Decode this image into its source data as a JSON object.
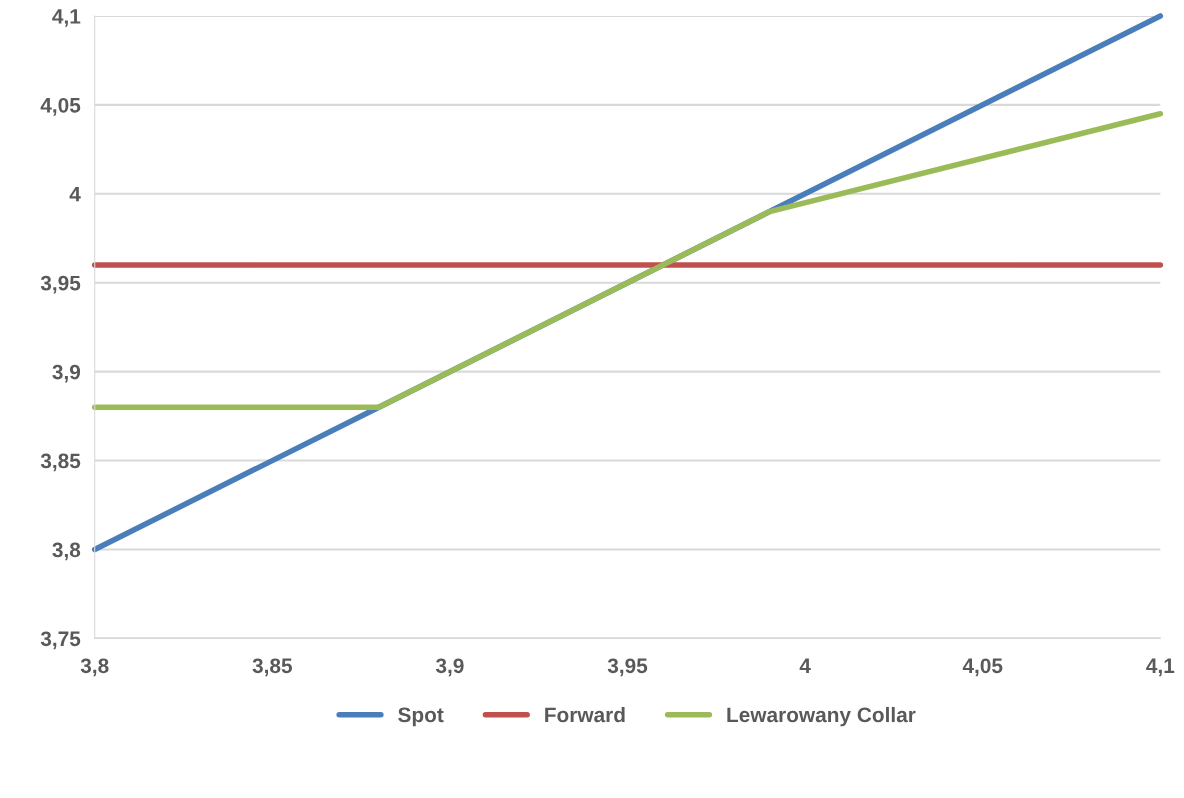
{
  "chart_data": {
    "type": "line",
    "x": [
      3.8,
      3.88,
      3.99,
      4.1
    ],
    "series": [
      {
        "name": "Spot",
        "color": "#4a7ebb",
        "values": [
          3.8,
          3.88,
          3.99,
          4.1
        ]
      },
      {
        "name": "Forward",
        "color": "#c0504d",
        "values": [
          3.96,
          3.96,
          3.96,
          3.96
        ]
      },
      {
        "name": "Lewarowany Collar",
        "color": "#9bbb59",
        "values": [
          3.88,
          3.88,
          3.99,
          4.045
        ]
      }
    ],
    "xlim": [
      3.8,
      4.1
    ],
    "xticks": [
      {
        "value": 3.8,
        "label": "3,8"
      },
      {
        "value": 3.85,
        "label": "3,85"
      },
      {
        "value": 3.9,
        "label": "3,9"
      },
      {
        "value": 3.95,
        "label": "3,95"
      },
      {
        "value": 4.0,
        "label": "4"
      },
      {
        "value": 4.05,
        "label": "4,05"
      },
      {
        "value": 4.1,
        "label": "4,1"
      }
    ],
    "ylim": [
      3.75,
      4.1
    ],
    "yticks": [
      {
        "value": 3.75,
        "label": "3,75"
      },
      {
        "value": 3.8,
        "label": "3,8"
      },
      {
        "value": 3.85,
        "label": "3,85"
      },
      {
        "value": 3.9,
        "label": "3,9"
      },
      {
        "value": 3.95,
        "label": "3,95"
      },
      {
        "value": 4.0,
        "label": "4"
      },
      {
        "value": 4.05,
        "label": "4,05"
      },
      {
        "value": 4.1,
        "label": "4,1"
      }
    ],
    "grid": "y",
    "legend": "bottom",
    "marker": "none",
    "line_style": "solid"
  }
}
